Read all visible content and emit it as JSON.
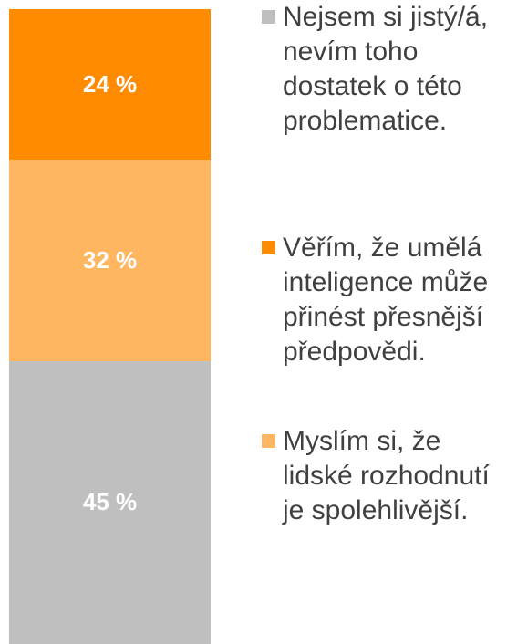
{
  "chart_data": {
    "type": "stacked-bar",
    "series": [
      {
        "name": "Věřím, že umělá inteligence může přinést přesnější předpovědi.",
        "color": "#ff8c00",
        "values": [
          24
        ],
        "value_labels": [
          "24 %"
        ]
      },
      {
        "name": "Myslím si, že lidské rozhodnutí je spolehlivější.",
        "color": "#ffb660",
        "values": [
          32
        ],
        "value_labels": [
          "32 %"
        ]
      },
      {
        "name": "Nejsem si jistý/á, nevím toho dostatek o této problematice.",
        "color": "#bfbfbf",
        "values": [
          45
        ],
        "value_labels": [
          "45 %"
        ]
      }
    ]
  }
}
